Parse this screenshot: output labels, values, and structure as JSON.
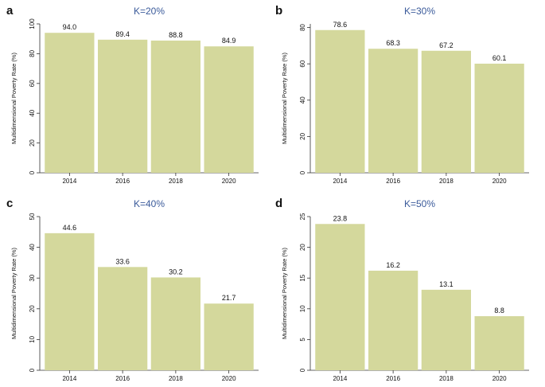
{
  "chart_data": [
    {
      "panel_letter": "a",
      "type": "bar",
      "title": "K=20%",
      "ylabel": "Multidimensional Poverty Rate (%)",
      "xlabel": "",
      "categories": [
        "2014",
        "2016",
        "2018",
        "2020"
      ],
      "values": [
        94.0,
        89.4,
        88.8,
        84.9
      ],
      "value_labels": [
        "94.0",
        "89.4",
        "88.8",
        "84.9"
      ],
      "ylim": [
        0,
        100
      ],
      "yticks": [
        0,
        20,
        40,
        60,
        80,
        100
      ],
      "ytick_labels": [
        "0",
        "20",
        "40",
        "60",
        "80",
        "100"
      ],
      "grid": false,
      "legend": "none"
    },
    {
      "panel_letter": "b",
      "type": "bar",
      "title": "K=30%",
      "ylabel": "Multidimensional Poverty Rate (%)",
      "xlabel": "",
      "categories": [
        "2014",
        "2016",
        "2018",
        "2020"
      ],
      "values": [
        78.6,
        68.3,
        67.2,
        60.1
      ],
      "value_labels": [
        "78.6",
        "68.3",
        "67.2",
        "60.1"
      ],
      "ylim": [
        0,
        82
      ],
      "yticks": [
        0,
        20,
        40,
        60,
        80
      ],
      "ytick_labels": [
        "0",
        "20",
        "40",
        "60",
        "80"
      ],
      "grid": false,
      "legend": "none"
    },
    {
      "panel_letter": "c",
      "type": "bar",
      "title": "K=40%",
      "ylabel": "Multidimensional Poverty Rate (%)",
      "xlabel": "",
      "categories": [
        "2014",
        "2016",
        "2018",
        "2020"
      ],
      "values": [
        44.6,
        33.6,
        30.2,
        21.7
      ],
      "value_labels": [
        "44.6",
        "33.6",
        "30.2",
        "21.7"
      ],
      "ylim": [
        0,
        50
      ],
      "yticks": [
        0,
        10,
        20,
        30,
        40,
        50
      ],
      "ytick_labels": [
        "0",
        "10",
        "20",
        "30",
        "40",
        "50"
      ],
      "grid": false,
      "legend": "none"
    },
    {
      "panel_letter": "d",
      "type": "bar",
      "title": "K=50%",
      "ylabel": "Multidimensional Poverty Rate (%)",
      "xlabel": "",
      "categories": [
        "2014",
        "2016",
        "2018",
        "2020"
      ],
      "values": [
        23.8,
        16.2,
        13.1,
        8.8
      ],
      "value_labels": [
        "23.8",
        "16.2",
        "13.1",
        "8.8"
      ],
      "ylim": [
        0,
        25
      ],
      "yticks": [
        0,
        5,
        10,
        15,
        20,
        25
      ],
      "ytick_labels": [
        "0",
        "5",
        "10",
        "15",
        "20",
        "25"
      ],
      "grid": false,
      "legend": "none"
    }
  ],
  "colors": {
    "bar": "#d4d89c",
    "title": "#3a5a9a",
    "axis": "#333333",
    "text": "#111111"
  }
}
